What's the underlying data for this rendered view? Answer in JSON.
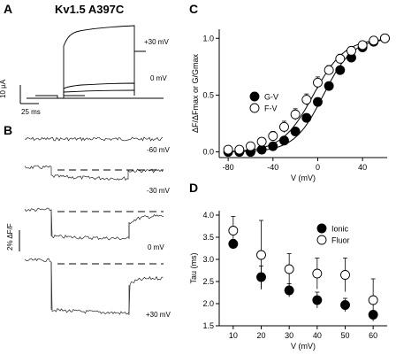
{
  "figure": {
    "title": "Kv1.5 A397C",
    "panel_a": {
      "letter": "A",
      "traces": [
        "+30 mV",
        "0 mV"
      ],
      "scale_current": "10 µA",
      "scale_time": "25 ms"
    },
    "panel_b": {
      "letter": "B",
      "traces": [
        "-60 mV",
        "-30 mV",
        "0 mV",
        "+30 mV"
      ],
      "scale_fluor": "2% ΔF/F"
    }
  },
  "chart_data": [
    {
      "panel": "C",
      "type": "scatter",
      "xlabel": "V (mV)",
      "ylabel": "ΔF/ΔFmax or G/Gmax",
      "xlim": [
        -88,
        62
      ],
      "ylim": [
        -0.05,
        1.08
      ],
      "xticks": [
        -80,
        -40,
        0,
        40
      ],
      "yticks": [
        0.0,
        0.5,
        1.0
      ],
      "grid": false,
      "legend_position": "upper-left",
      "series": [
        {
          "name": "G-V",
          "marker": "filled-circle",
          "x": [
            -80,
            -70,
            -60,
            -50,
            -40,
            -30,
            -20,
            -10,
            0,
            10,
            20,
            30,
            40,
            50,
            60
          ],
          "y": [
            0.0,
            0.0,
            0.0,
            0.02,
            0.05,
            0.1,
            0.18,
            0.3,
            0.44,
            0.58,
            0.72,
            0.83,
            0.92,
            0.97,
            1.0
          ]
        },
        {
          "name": "F-V",
          "marker": "open-circle",
          "x": [
            -80,
            -70,
            -60,
            -50,
            -40,
            -30,
            -20,
            -10,
            0,
            10,
            20,
            30,
            40,
            50,
            60
          ],
          "y": [
            0.02,
            0.02,
            0.05,
            0.09,
            0.14,
            0.22,
            0.33,
            0.46,
            0.61,
            0.72,
            0.82,
            0.89,
            0.94,
            0.98,
            1.0
          ],
          "error": [
            0.02,
            0.02,
            0.03,
            0.03,
            0.04,
            0.05,
            0.05,
            0.05,
            0.05,
            0.04,
            0.04,
            0.03,
            0.02,
            0.02,
            0.01
          ]
        }
      ],
      "fits": [
        "sigmoid-G-V",
        "sigmoid-F-V"
      ]
    },
    {
      "panel": "D",
      "type": "scatter",
      "xlabel": "V (mV)",
      "ylabel": "Tau (ms)",
      "xlim": [
        5,
        65
      ],
      "ylim": [
        1.5,
        4.1
      ],
      "xticks": [
        10,
        20,
        30,
        40,
        50,
        60
      ],
      "yticks": [
        1.5,
        2.0,
        2.5,
        3.0,
        3.5,
        4.0
      ],
      "grid": false,
      "legend_position": "upper-right",
      "series": [
        {
          "name": "Ionic",
          "marker": "filled-circle",
          "x": [
            10,
            20,
            30,
            40,
            50,
            60
          ],
          "y": [
            3.35,
            2.6,
            2.3,
            2.08,
            1.97,
            1.75
          ],
          "error": [
            0.1,
            0.25,
            0.15,
            0.18,
            0.15,
            0.08
          ]
        },
        {
          "name": "Fluor",
          "marker": "open-circle",
          "x": [
            10,
            20,
            30,
            40,
            50,
            60
          ],
          "y": [
            3.65,
            3.1,
            2.78,
            2.68,
            2.65,
            2.08
          ],
          "error": [
            0.32,
            0.78,
            0.35,
            0.35,
            0.38,
            0.48
          ]
        }
      ]
    }
  ]
}
